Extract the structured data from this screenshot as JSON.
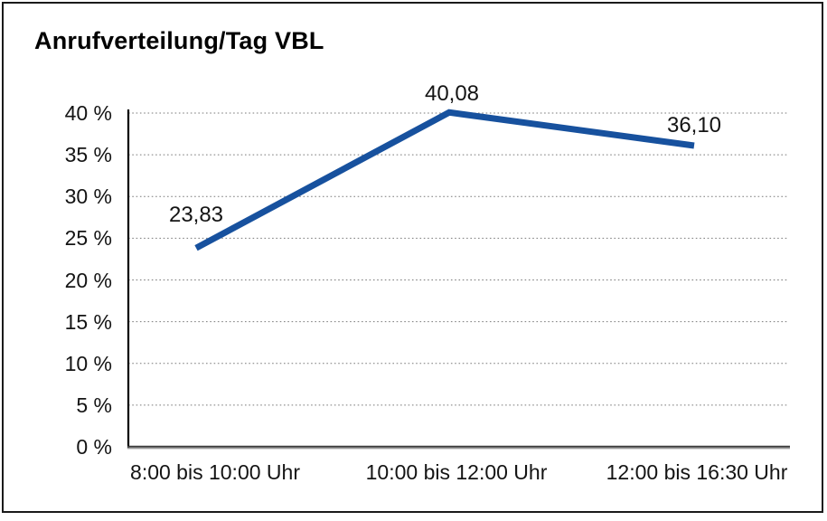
{
  "chart_data": {
    "type": "line",
    "title": "Anrufverteilung/Tag VBL",
    "categories": [
      "8:00 bis 10:00 Uhr",
      "10:00 bis 12:00 Uhr",
      "12:00 bis 16:30 Uhr"
    ],
    "values": [
      23.83,
      40.08,
      36.1
    ],
    "value_labels": [
      "23,83",
      "40,08",
      "36,10"
    ],
    "xlabel": "",
    "ylabel": "",
    "ylim": [
      0,
      40
    ],
    "y_ticks": [
      {
        "value": 0,
        "label": "0 %"
      },
      {
        "value": 5,
        "label": "5 %"
      },
      {
        "value": 10,
        "label": "10 %"
      },
      {
        "value": 15,
        "label": "15 %"
      },
      {
        "value": 20,
        "label": "20 %"
      },
      {
        "value": 25,
        "label": "25 %"
      },
      {
        "value": 30,
        "label": "30 %"
      },
      {
        "value": 35,
        "label": "35 %"
      },
      {
        "value": 40,
        "label": "40 %"
      }
    ],
    "grid": "horizontal-dotted",
    "legend": "none",
    "line_color": "#17519E",
    "axis_color": "#000000",
    "gridline_color": "#7a7a7a",
    "text_color": "#141414"
  }
}
